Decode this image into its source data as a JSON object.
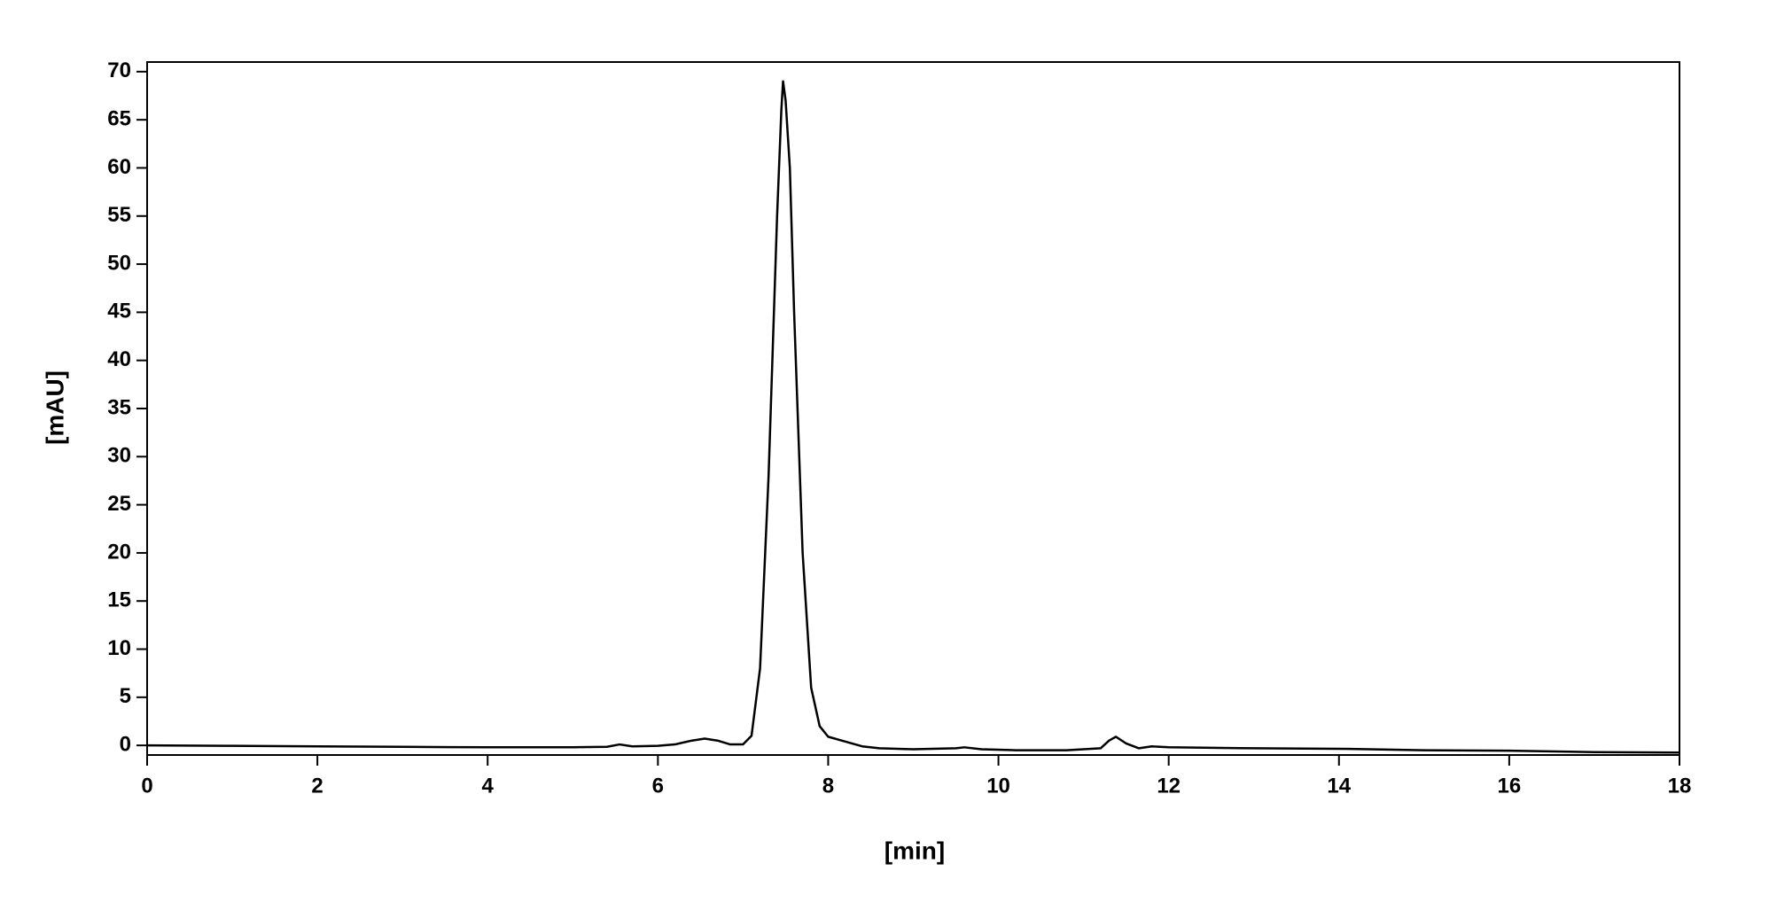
{
  "chart_data": {
    "type": "line",
    "x_label": "[min]",
    "y_label": "[mAU]",
    "x": [
      0,
      1,
      2,
      3,
      4,
      5,
      5.4,
      5.55,
      5.7,
      6.0,
      6.2,
      6.4,
      6.55,
      6.7,
      6.85,
      7.0,
      7.1,
      7.2,
      7.3,
      7.4,
      7.45,
      7.47,
      7.5,
      7.55,
      7.6,
      7.7,
      7.8,
      7.9,
      8.0,
      8.2,
      8.4,
      8.6,
      9.0,
      9.5,
      9.6,
      9.8,
      10.2,
      10.8,
      11.2,
      11.3,
      11.38,
      11.5,
      11.65,
      11.8,
      12,
      13,
      14,
      15,
      16,
      17,
      18
    ],
    "values": [
      0,
      -0.05,
      -0.1,
      -0.15,
      -0.2,
      -0.2,
      -0.15,
      0.1,
      -0.1,
      -0.05,
      0.1,
      0.5,
      0.7,
      0.5,
      0.1,
      0.1,
      1.0,
      8,
      28,
      55,
      66,
      69,
      67,
      60,
      45,
      20,
      6,
      2,
      0.9,
      0.4,
      -0.1,
      -0.3,
      -0.4,
      -0.3,
      -0.2,
      -0.4,
      -0.5,
      -0.5,
      -0.3,
      0.5,
      0.9,
      0.2,
      -0.3,
      -0.1,
      -0.2,
      -0.3,
      -0.35,
      -0.5,
      -0.55,
      -0.7,
      -0.75
    ],
    "color": "#000000",
    "xlim": [
      0,
      18
    ],
    "xticks": [
      0,
      2,
      4,
      6,
      8,
      10,
      12,
      14,
      16,
      18
    ],
    "ylim": [
      -1,
      71
    ],
    "yticks": [
      0,
      5,
      10,
      15,
      20,
      25,
      30,
      35,
      40,
      45,
      50,
      55,
      60,
      65,
      70
    ],
    "grid": false
  }
}
